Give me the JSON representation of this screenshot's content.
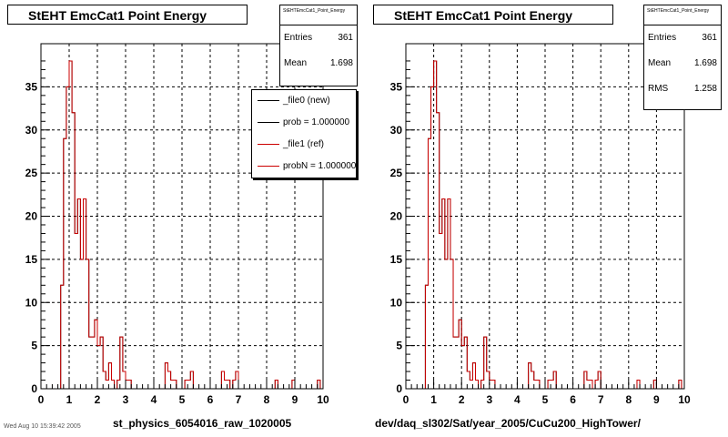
{
  "colors": {
    "new": "#000000",
    "ref": "#cc0000",
    "grid": "#000000",
    "frame": "#000000"
  },
  "panels": [
    {
      "title": "StEHT EmcCat1 Point Energy",
      "stats": {
        "name": "StEHTEmcCat1_Point_Energy",
        "rows": [
          {
            "label": "Entries",
            "value": "361"
          },
          {
            "label": "Mean",
            "value": "1.698"
          }
        ]
      },
      "legend": [
        {
          "label": "_file0 (new)",
          "color": "#000000"
        },
        {
          "label": "prob = 1.000000",
          "color": "#000000"
        },
        {
          "label": "_file1 (ref)",
          "color": "#cc0000"
        },
        {
          "label": "probN = 1.000000",
          "color": "#cc0000"
        }
      ],
      "xtitle": "st_physics_6054016_raw_1020005"
    },
    {
      "title": "StEHT EmcCat1 Point Energy",
      "stats": {
        "name": "StEHTEmcCat1_Point_Energy",
        "rows": [
          {
            "label": "Entries",
            "value": "361"
          },
          {
            "label": "Mean",
            "value": "1.698"
          },
          {
            "label": "RMS",
            "value": "1.258"
          }
        ]
      },
      "legend": [],
      "xtitle": "dev/daq_sl302/Sat/year_2005/CuCu200_HighTower/"
    }
  ],
  "footer": "Wed Aug 10 15:39:42 2005",
  "chart_data": {
    "type": "histogram",
    "xlim": [
      0,
      10
    ],
    "ylim": [
      0,
      40
    ],
    "xticks": [
      0,
      1,
      2,
      3,
      4,
      5,
      6,
      7,
      8,
      9,
      10
    ],
    "yticks": [
      0,
      5,
      10,
      15,
      20,
      25,
      30,
      35
    ],
    "grid": true,
    "bin_width": 0.1,
    "series": [
      {
        "name": "_file0 (new)",
        "values": [
          0,
          0,
          0,
          0,
          0,
          0,
          0,
          12,
          29,
          35,
          38,
          32,
          18,
          22,
          15,
          22,
          15,
          6,
          6,
          8,
          5,
          6,
          2,
          1,
          3,
          1,
          0,
          1,
          6,
          2,
          1,
          1,
          0,
          0,
          0,
          0,
          0,
          0,
          0,
          0,
          0,
          0,
          0,
          0,
          3,
          2,
          1,
          1,
          0,
          0,
          0,
          1,
          1,
          2,
          0,
          0,
          0,
          0,
          0,
          0,
          0,
          0,
          0,
          0,
          2,
          1,
          1,
          0,
          1,
          2,
          0,
          0,
          0,
          0,
          0,
          0,
          0,
          0,
          0,
          0,
          0,
          0,
          0,
          1,
          0,
          0,
          0,
          0,
          0,
          1,
          0,
          0,
          0,
          0,
          0,
          0,
          0,
          0,
          1,
          0
        ]
      },
      {
        "name": "_file1 (ref)",
        "values": [
          0,
          0,
          0,
          0,
          0,
          0,
          0,
          12,
          29,
          35,
          38,
          32,
          18,
          22,
          15,
          22,
          15,
          6,
          6,
          8,
          5,
          6,
          2,
          1,
          3,
          1,
          0,
          1,
          6,
          2,
          1,
          1,
          0,
          0,
          0,
          0,
          0,
          0,
          0,
          0,
          0,
          0,
          0,
          0,
          3,
          2,
          1,
          1,
          0,
          0,
          0,
          1,
          1,
          2,
          0,
          0,
          0,
          0,
          0,
          0,
          0,
          0,
          0,
          0,
          2,
          1,
          1,
          0,
          1,
          2,
          0,
          0,
          0,
          0,
          0,
          0,
          0,
          0,
          0,
          0,
          0,
          0,
          0,
          1,
          0,
          0,
          0,
          0,
          0,
          1,
          0,
          0,
          0,
          0,
          0,
          0,
          0,
          0,
          1,
          0
        ]
      }
    ]
  }
}
